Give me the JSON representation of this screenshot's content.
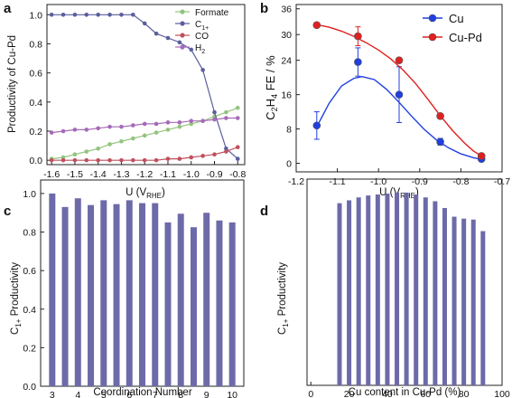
{
  "chart_data": [
    {
      "panel": "a",
      "type": "line",
      "xlabel_main": "U (V",
      "xlabel_sub": "RHE",
      "xlabel_end": ")",
      "ylabel": "Productivity of Cu-Pd",
      "x_ticks": [
        "-1.6",
        "-1.5",
        "-1.4",
        "-1.3",
        "-1.2",
        "-1.1",
        "-1.0",
        "-0.9",
        "-0.8"
      ],
      "y_ticks": [
        "0.0",
        "0.2",
        "0.4",
        "0.6",
        "0.8",
        "1.0"
      ],
      "xlim": [
        -1.62,
        -0.77
      ],
      "ylim": [
        -0.03,
        1.07
      ],
      "legend_position": "top-right",
      "x": [
        -1.6,
        -1.55,
        -1.5,
        -1.45,
        -1.4,
        -1.35,
        -1.3,
        -1.25,
        -1.2,
        -1.15,
        -1.1,
        -1.05,
        -1.0,
        -0.95,
        -0.9,
        -0.85,
        -0.8
      ],
      "series": [
        {
          "name": "Formate",
          "name_main": "Formate",
          "name_sub": "",
          "color": "#93c47d",
          "values": [
            0.01,
            0.02,
            0.04,
            0.06,
            0.08,
            0.11,
            0.13,
            0.15,
            0.17,
            0.19,
            0.21,
            0.23,
            0.25,
            0.27,
            0.3,
            0.33,
            0.36
          ]
        },
        {
          "name": "C1+",
          "name_main": "C",
          "name_sub": "1+",
          "color": "#5b5e9e",
          "values": [
            1.0,
            1.0,
            1.0,
            1.0,
            1.0,
            1.0,
            1.0,
            1.0,
            0.94,
            0.87,
            0.84,
            0.81,
            0.76,
            0.62,
            0.33,
            0.08,
            0.01
          ]
        },
        {
          "name": "CO",
          "name_main": "CO",
          "name_sub": "",
          "color": "#c0505d",
          "values": [
            0.0,
            0.0,
            0.0,
            0.0,
            0.0,
            0.0,
            0.0,
            0.0,
            0.0,
            0.0,
            0.01,
            0.01,
            0.02,
            0.03,
            0.04,
            0.06,
            0.09
          ]
        },
        {
          "name": "H2",
          "name_main": "H",
          "name_sub": "2",
          "color": "#a66ab8",
          "values": [
            0.19,
            0.2,
            0.21,
            0.21,
            0.22,
            0.23,
            0.23,
            0.24,
            0.25,
            0.25,
            0.26,
            0.26,
            0.27,
            0.27,
            0.28,
            0.29,
            0.29
          ]
        }
      ]
    },
    {
      "panel": "b",
      "type": "scatter",
      "xlabel_main": "U (V",
      "xlabel_sub": "RHE",
      "xlabel_end": ")",
      "ylabel": "C2H4 FE / %",
      "x_ticks": [
        "-1.2",
        "-1.1",
        "-1.0",
        "-0.9",
        "-0.8",
        "-0.7"
      ],
      "y_ticks": [
        "0",
        "8",
        "16",
        "24",
        "30",
        "36"
      ],
      "y_tick_values": [
        0,
        8,
        16,
        24,
        30,
        36
      ],
      "xlim": [
        -1.2,
        -0.7
      ],
      "ylim": [
        -2,
        37
      ],
      "legend_position": "top-right",
      "series": [
        {
          "name": "Cu",
          "color": "#1f3fe0",
          "x": [
            -1.15,
            -1.05,
            -0.95,
            -0.85,
            -0.75
          ],
          "values": [
            8.8,
            23.6,
            16.0,
            5.0,
            1.0
          ],
          "errors": [
            3.2,
            3.3,
            6.5,
            0.8,
            0.5
          ],
          "fit": [
            [
              -1.15,
              8.5
            ],
            [
              -1.12,
              14.0
            ],
            [
              -1.09,
              18.0
            ],
            [
              -1.06,
              19.8
            ],
            [
              -1.04,
              20.2
            ],
            [
              -1.01,
              19.5
            ],
            [
              -0.98,
              17.2
            ],
            [
              -0.95,
              14.2
            ],
            [
              -0.92,
              11.0
            ],
            [
              -0.89,
              8.0
            ],
            [
              -0.86,
              5.5
            ],
            [
              -0.83,
              3.6
            ],
            [
              -0.8,
              2.2
            ],
            [
              -0.77,
              1.3
            ],
            [
              -0.75,
              0.9
            ]
          ]
        },
        {
          "name": "Cu-Pd",
          "color": "#e02020",
          "x": [
            -1.15,
            -1.05,
            -0.95,
            -0.85,
            -0.75
          ],
          "values": [
            32.2,
            29.6,
            24.0,
            11.0,
            1.7
          ],
          "errors": [
            0.6,
            2.2,
            0.5,
            0.6,
            0.4
          ],
          "fit": [
            [
              -1.15,
              32.3
            ],
            [
              -1.12,
              31.7
            ],
            [
              -1.09,
              30.8
            ],
            [
              -1.06,
              29.6
            ],
            [
              -1.03,
              28.1
            ],
            [
              -1.0,
              26.4
            ],
            [
              -0.97,
              24.3
            ],
            [
              -0.94,
              21.7
            ],
            [
              -0.91,
              18.6
            ],
            [
              -0.88,
              14.9
            ],
            [
              -0.85,
              11.1
            ],
            [
              -0.82,
              7.6
            ],
            [
              -0.79,
              4.6
            ],
            [
              -0.77,
              2.9
            ],
            [
              -0.75,
              1.7
            ]
          ]
        }
      ]
    },
    {
      "panel": "c",
      "type": "bar",
      "color": "#6d6aa9",
      "ylabel_main": "C",
      "ylabel_sub": "1+",
      "ylabel_end": " Productivity",
      "xlabel": "Coordination Number",
      "x_ticks": [
        "3",
        "4",
        "5",
        "6",
        "7",
        "8",
        "9",
        "10"
      ],
      "x_tick_values": [
        3,
        4,
        5,
        6,
        7,
        8,
        9,
        10
      ],
      "y_ticks": [
        "0.0",
        "0.2",
        "0.4",
        "0.6",
        "0.8",
        "1.0"
      ],
      "xlim": [
        2.55,
        10.45
      ],
      "ylim": [
        0,
        1.07
      ],
      "x": [
        3,
        3.5,
        4,
        4.5,
        5,
        5.5,
        6,
        6.5,
        7,
        7.5,
        8,
        8.5,
        9,
        9.5,
        10
      ],
      "values": [
        1.0,
        0.93,
        0.975,
        0.94,
        0.965,
        0.945,
        0.965,
        0.95,
        0.95,
        0.85,
        0.895,
        0.825,
        0.9,
        0.86,
        0.85
      ]
    },
    {
      "panel": "d",
      "type": "bar",
      "color": "#6d6aa9",
      "ylabel_main": "C",
      "ylabel_sub": "1+",
      "ylabel_end": " Productivity",
      "xlabel": "Cu content in Cu-Pd (%)",
      "x_ticks": [
        "0",
        "20",
        "40",
        "60",
        "80",
        "100"
      ],
      "x_tick_values": [
        0,
        20,
        40,
        60,
        80,
        100
      ],
      "xlim": [
        -2,
        100
      ],
      "ylim": [
        0,
        1.07
      ],
      "x": [
        15,
        20,
        25,
        30,
        35,
        40,
        45,
        50,
        55,
        60,
        65,
        70,
        75,
        80,
        85,
        90
      ],
      "values": [
        0.945,
        0.96,
        0.975,
        0.985,
        0.99,
        0.995,
        1.0,
        1.0,
        0.99,
        0.975,
        0.955,
        0.92,
        0.875,
        0.865,
        0.86,
        0.8
      ]
    }
  ]
}
